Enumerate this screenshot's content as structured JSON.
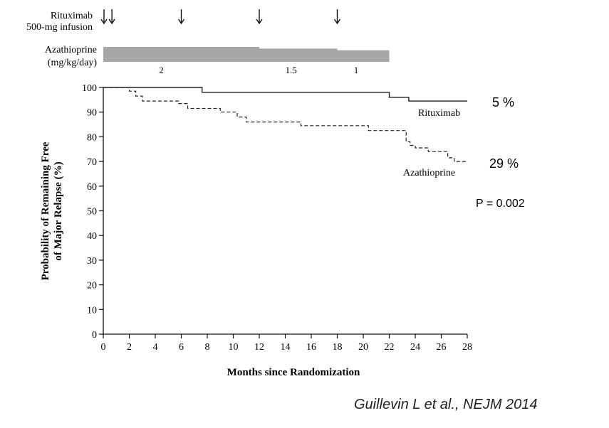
{
  "header": {
    "infusion_label_line1": "Rituximab",
    "infusion_label_line2": "500-mg infusion",
    "infusion_months": [
      0,
      0.5,
      6,
      12,
      18
    ],
    "aza_label_line1": "Azathioprine",
    "aza_label_line2": "(mg/kg/day)",
    "aza_dose_segments": [
      {
        "start": 0,
        "end": 12,
        "dose": 2,
        "label": "2"
      },
      {
        "start": 12,
        "end": 18,
        "dose": 1.5,
        "label": "1.5"
      },
      {
        "start": 18,
        "end": 22,
        "dose": 1,
        "label": "1"
      }
    ]
  },
  "chart_data": {
    "type": "line",
    "title": "",
    "xlabel": "Months since Randomization",
    "ylabel_line1": "Probability of Remaining Free",
    "ylabel_line2": "of Major Relapse (%)",
    "xlim": [
      0,
      28
    ],
    "ylim": [
      0,
      100
    ],
    "xticks": [
      0,
      2,
      4,
      6,
      8,
      10,
      12,
      14,
      16,
      18,
      20,
      22,
      24,
      26,
      28
    ],
    "yticks": [
      0,
      10,
      20,
      30,
      40,
      50,
      60,
      70,
      80,
      90,
      100
    ],
    "grid": false,
    "series": [
      {
        "name": "Rituximab",
        "style": "solid",
        "color": "#222222",
        "points": [
          [
            0,
            100
          ],
          [
            7.6,
            100
          ],
          [
            7.6,
            98
          ],
          [
            22,
            98
          ],
          [
            22,
            96
          ],
          [
            23.5,
            96
          ],
          [
            23.5,
            94.5
          ],
          [
            28,
            94.5
          ]
        ]
      },
      {
        "name": "Azathioprine",
        "style": "dashed",
        "color": "#222222",
        "points": [
          [
            0,
            100
          ],
          [
            2,
            100
          ],
          [
            2,
            98.5
          ],
          [
            2.5,
            98.5
          ],
          [
            2.5,
            96.5
          ],
          [
            3,
            96.5
          ],
          [
            3,
            94.5
          ],
          [
            5.8,
            94.5
          ],
          [
            5.8,
            93.5
          ],
          [
            6.5,
            93.5
          ],
          [
            6.5,
            91.5
          ],
          [
            9,
            91.5
          ],
          [
            9,
            90
          ],
          [
            10.3,
            90
          ],
          [
            10.3,
            88
          ],
          [
            11,
            88
          ],
          [
            11,
            86
          ],
          [
            15.2,
            86
          ],
          [
            15.2,
            84.5
          ],
          [
            20.4,
            84.5
          ],
          [
            20.4,
            82.5
          ],
          [
            23.3,
            82.5
          ],
          [
            23.3,
            78
          ],
          [
            23.6,
            78
          ],
          [
            23.6,
            76.5
          ],
          [
            24,
            76.5
          ],
          [
            24,
            75.5
          ],
          [
            25,
            75.5
          ],
          [
            25,
            74
          ],
          [
            26.5,
            74
          ],
          [
            26.5,
            71.5
          ],
          [
            27,
            71.5
          ],
          [
            27,
            70
          ],
          [
            28,
            70
          ]
        ]
      }
    ],
    "annotations": {
      "rituximab_pct": "5 %",
      "azathioprine_pct": "29 %",
      "p_value": "P = 0.002"
    }
  },
  "citation": "Guillevin L et al., NEJM 2014"
}
